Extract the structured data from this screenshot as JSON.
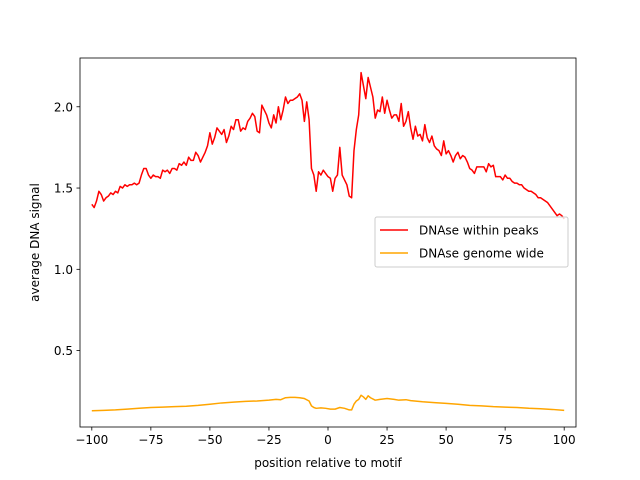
{
  "chart_data": {
    "type": "line",
    "title": "",
    "xlabel": "position relative to motif",
    "ylabel": "average DNA signal",
    "xlim": [
      -105,
      105
    ],
    "ylim": [
      0.03,
      2.3
    ],
    "xticks": [
      -100,
      -75,
      -50,
      -25,
      0,
      25,
      50,
      75,
      100
    ],
    "xtick_labels": [
      "−100",
      "−75",
      "−50",
      "−25",
      "0",
      "25",
      "50",
      "75",
      "100"
    ],
    "yticks": [
      0.5,
      1.0,
      1.5,
      2.0
    ],
    "ytick_labels": [
      "0.5",
      "1.0",
      "1.5",
      "2.0"
    ],
    "grid": false,
    "legend_position": "center-right",
    "series": [
      {
        "name": "DNAse within peaks",
        "color": "#ff0000",
        "points": [
          [
            -100,
            1.4
          ],
          [
            -99,
            1.38
          ],
          [
            -98,
            1.42
          ],
          [
            -97,
            1.48
          ],
          [
            -96,
            1.46
          ],
          [
            -95,
            1.42
          ],
          [
            -94,
            1.44
          ],
          [
            -93,
            1.45
          ],
          [
            -92,
            1.47
          ],
          [
            -91,
            1.46
          ],
          [
            -90,
            1.48
          ],
          [
            -89,
            1.47
          ],
          [
            -88,
            1.51
          ],
          [
            -87,
            1.5
          ],
          [
            -86,
            1.52
          ],
          [
            -85,
            1.51
          ],
          [
            -84,
            1.52
          ],
          [
            -83,
            1.52
          ],
          [
            -82,
            1.53
          ],
          [
            -81,
            1.52
          ],
          [
            -80,
            1.53
          ],
          [
            -79,
            1.58
          ],
          [
            -78,
            1.62
          ],
          [
            -77,
            1.62
          ],
          [
            -76,
            1.58
          ],
          [
            -75,
            1.56
          ],
          [
            -74,
            1.58
          ],
          [
            -73,
            1.57
          ],
          [
            -72,
            1.57
          ],
          [
            -71,
            1.56
          ],
          [
            -70,
            1.61
          ],
          [
            -69,
            1.6
          ],
          [
            -68,
            1.61
          ],
          [
            -67,
            1.59
          ],
          [
            -66,
            1.62
          ],
          [
            -65,
            1.62
          ],
          [
            -64,
            1.61
          ],
          [
            -63,
            1.65
          ],
          [
            -62,
            1.64
          ],
          [
            -61,
            1.66
          ],
          [
            -60,
            1.64
          ],
          [
            -59,
            1.69
          ],
          [
            -58,
            1.67
          ],
          [
            -57,
            1.67
          ],
          [
            -56,
            1.72
          ],
          [
            -55,
            1.7
          ],
          [
            -54,
            1.66
          ],
          [
            -53,
            1.69
          ],
          [
            -52,
            1.72
          ],
          [
            -51,
            1.76
          ],
          [
            -50,
            1.84
          ],
          [
            -49,
            1.77
          ],
          [
            -48,
            1.81
          ],
          [
            -47,
            1.87
          ],
          [
            -46,
            1.85
          ],
          [
            -45,
            1.83
          ],
          [
            -44,
            1.86
          ],
          [
            -43,
            1.78
          ],
          [
            -42,
            1.82
          ],
          [
            -41,
            1.88
          ],
          [
            -40,
            1.86
          ],
          [
            -39,
            1.92
          ],
          [
            -38,
            1.92
          ],
          [
            -37,
            1.85
          ],
          [
            -36,
            1.87
          ],
          [
            -35,
            1.86
          ],
          [
            -34,
            1.91
          ],
          [
            -33,
            1.93
          ],
          [
            -32,
            1.96
          ],
          [
            -31,
            1.94
          ],
          [
            -30,
            1.85
          ],
          [
            -29,
            1.84
          ],
          [
            -28,
            2.01
          ],
          [
            -27,
            1.98
          ],
          [
            -26,
            1.95
          ],
          [
            -25,
            1.9
          ],
          [
            -24,
            1.87
          ],
          [
            -23,
            1.95
          ],
          [
            -22,
            1.9
          ],
          [
            -21,
            2.0
          ],
          [
            -20,
            1.92
          ],
          [
            -19,
            1.98
          ],
          [
            -18,
            2.06
          ],
          [
            -17,
            2.02
          ],
          [
            -16,
            2.04
          ],
          [
            -15,
            2.04
          ],
          [
            -14,
            2.05
          ],
          [
            -13,
            2.06
          ],
          [
            -12,
            2.08
          ],
          [
            -11,
            2.04
          ],
          [
            -10,
            1.91
          ],
          [
            -9,
            2.03
          ],
          [
            -8,
            1.92
          ],
          [
            -7,
            1.62
          ],
          [
            -6,
            1.58
          ],
          [
            -5,
            1.48
          ],
          [
            -4,
            1.6
          ],
          [
            -3,
            1.58
          ],
          [
            -2,
            1.61
          ],
          [
            -1,
            1.59
          ],
          [
            0,
            1.57
          ],
          [
            1,
            1.56
          ],
          [
            2,
            1.48
          ],
          [
            3,
            1.56
          ],
          [
            4,
            1.58
          ],
          [
            5,
            1.75
          ],
          [
            6,
            1.58
          ],
          [
            7,
            1.55
          ],
          [
            8,
            1.52
          ],
          [
            9,
            1.45
          ],
          [
            10,
            1.44
          ],
          [
            11,
            1.73
          ],
          [
            12,
            1.86
          ],
          [
            13,
            1.95
          ],
          [
            14,
            2.21
          ],
          [
            15,
            2.13
          ],
          [
            16,
            2.05
          ],
          [
            17,
            2.18
          ],
          [
            18,
            2.12
          ],
          [
            19,
            2.06
          ],
          [
            20,
            1.93
          ],
          [
            21,
            1.98
          ],
          [
            22,
            1.97
          ],
          [
            23,
            2.06
          ],
          [
            24,
            1.96
          ],
          [
            25,
            2.04
          ],
          [
            26,
            1.98
          ],
          [
            27,
            1.93
          ],
          [
            28,
            1.95
          ],
          [
            29,
            1.95
          ],
          [
            30,
            1.91
          ],
          [
            31,
            2.02
          ],
          [
            32,
            1.88
          ],
          [
            33,
            1.91
          ],
          [
            34,
            1.97
          ],
          [
            35,
            1.87
          ],
          [
            36,
            1.8
          ],
          [
            37,
            1.88
          ],
          [
            38,
            1.82
          ],
          [
            39,
            1.83
          ],
          [
            40,
            1.79
          ],
          [
            41,
            1.89
          ],
          [
            42,
            1.81
          ],
          [
            43,
            1.78
          ],
          [
            44,
            1.82
          ],
          [
            45,
            1.76
          ],
          [
            46,
            1.74
          ],
          [
            47,
            1.73
          ],
          [
            48,
            1.7
          ],
          [
            49,
            1.79
          ],
          [
            50,
            1.71
          ],
          [
            51,
            1.73
          ],
          [
            52,
            1.7
          ],
          [
            53,
            1.66
          ],
          [
            54,
            1.7
          ],
          [
            55,
            1.72
          ],
          [
            56,
            1.68
          ],
          [
            57,
            1.7
          ],
          [
            58,
            1.69
          ],
          [
            59,
            1.66
          ],
          [
            60,
            1.62
          ],
          [
            61,
            1.61
          ],
          [
            62,
            1.59
          ],
          [
            63,
            1.63
          ],
          [
            64,
            1.63
          ],
          [
            65,
            1.63
          ],
          [
            66,
            1.63
          ],
          [
            67,
            1.6
          ],
          [
            68,
            1.65
          ],
          [
            69,
            1.63
          ],
          [
            70,
            1.64
          ],
          [
            71,
            1.57
          ],
          [
            72,
            1.57
          ],
          [
            73,
            1.57
          ],
          [
            74,
            1.55
          ],
          [
            75,
            1.58
          ],
          [
            76,
            1.56
          ],
          [
            77,
            1.56
          ],
          [
            78,
            1.54
          ],
          [
            79,
            1.53
          ],
          [
            80,
            1.53
          ],
          [
            81,
            1.52
          ],
          [
            82,
            1.52
          ],
          [
            83,
            1.5
          ],
          [
            84,
            1.49
          ],
          [
            85,
            1.48
          ],
          [
            86,
            1.48
          ],
          [
            87,
            1.47
          ],
          [
            88,
            1.46
          ],
          [
            89,
            1.44
          ],
          [
            90,
            1.44
          ],
          [
            91,
            1.43
          ],
          [
            92,
            1.42
          ],
          [
            93,
            1.41
          ],
          [
            94,
            1.39
          ],
          [
            95,
            1.37
          ],
          [
            96,
            1.35
          ],
          [
            97,
            1.33
          ],
          [
            98,
            1.34
          ],
          [
            99,
            1.33
          ],
          [
            100,
            1.31
          ]
        ]
      },
      {
        "name": "DNAse genome wide",
        "color": "#ffa500",
        "points": [
          [
            -100,
            0.13
          ],
          [
            -95,
            0.132
          ],
          [
            -90,
            0.135
          ],
          [
            -85,
            0.14
          ],
          [
            -80,
            0.145
          ],
          [
            -75,
            0.15
          ],
          [
            -70,
            0.152
          ],
          [
            -65,
            0.155
          ],
          [
            -60,
            0.158
          ],
          [
            -55,
            0.163
          ],
          [
            -50,
            0.17
          ],
          [
            -45,
            0.178
          ],
          [
            -40,
            0.183
          ],
          [
            -35,
            0.188
          ],
          [
            -30,
            0.19
          ],
          [
            -25,
            0.195
          ],
          [
            -22,
            0.2
          ],
          [
            -20,
            0.198
          ],
          [
            -18,
            0.21
          ],
          [
            -16,
            0.212
          ],
          [
            -14,
            0.212
          ],
          [
            -12,
            0.21
          ],
          [
            -10,
            0.205
          ],
          [
            -8,
            0.19
          ],
          [
            -7,
            0.16
          ],
          [
            -6,
            0.15
          ],
          [
            -5,
            0.145
          ],
          [
            -3,
            0.148
          ],
          [
            -1,
            0.145
          ],
          [
            1,
            0.14
          ],
          [
            3,
            0.14
          ],
          [
            5,
            0.15
          ],
          [
            7,
            0.145
          ],
          [
            9,
            0.135
          ],
          [
            10,
            0.135
          ],
          [
            11,
            0.17
          ],
          [
            12,
            0.19
          ],
          [
            13,
            0.2
          ],
          [
            14,
            0.225
          ],
          [
            15,
            0.215
          ],
          [
            16,
            0.2
          ],
          [
            17,
            0.222
          ],
          [
            18,
            0.21
          ],
          [
            20,
            0.195
          ],
          [
            22,
            0.2
          ],
          [
            25,
            0.205
          ],
          [
            28,
            0.2
          ],
          [
            30,
            0.195
          ],
          [
            33,
            0.198
          ],
          [
            35,
            0.192
          ],
          [
            40,
            0.185
          ],
          [
            45,
            0.18
          ],
          [
            50,
            0.175
          ],
          [
            55,
            0.17
          ],
          [
            60,
            0.163
          ],
          [
            65,
            0.16
          ],
          [
            70,
            0.155
          ],
          [
            75,
            0.152
          ],
          [
            80,
            0.15
          ],
          [
            85,
            0.145
          ],
          [
            90,
            0.142
          ],
          [
            95,
            0.138
          ],
          [
            100,
            0.132
          ]
        ]
      }
    ]
  }
}
